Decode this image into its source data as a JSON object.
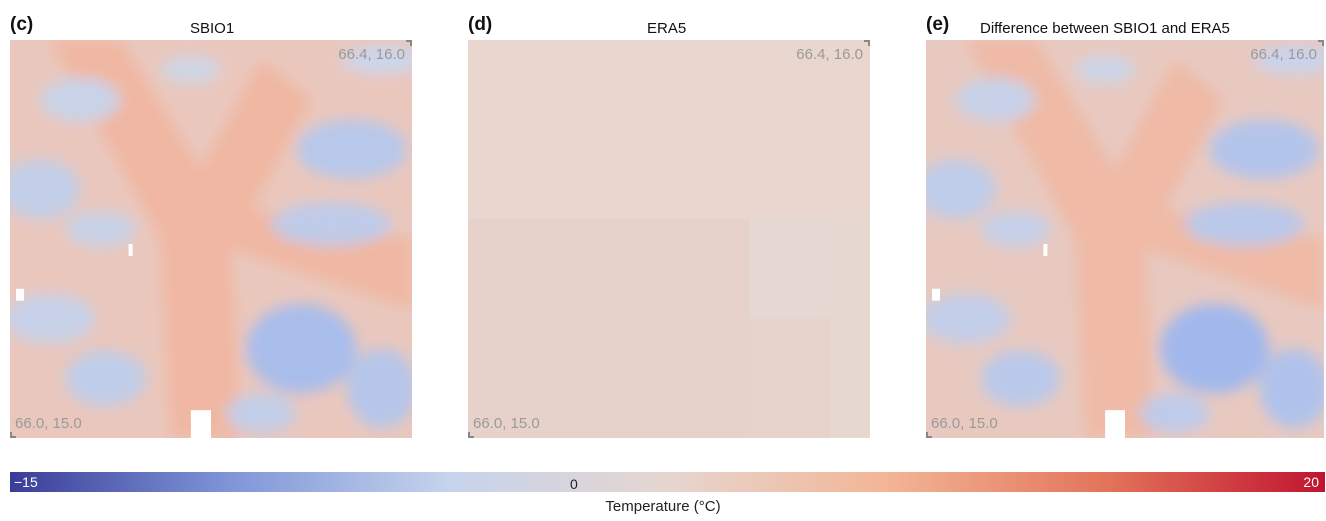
{
  "panels": [
    {
      "letter": "(c)",
      "title": "SBIO1",
      "ne_coord": "66.4, 16.0",
      "sw_coord": "66.0, 15.0"
    },
    {
      "letter": "(d)",
      "title": "ERA5",
      "ne_coord": "66.4, 16.0",
      "sw_coord": "66.0, 15.0"
    },
    {
      "letter": "(e)",
      "title": "Difference between SBIO1 and ERA5",
      "ne_coord": "66.4, 16.0",
      "sw_coord": "66.0, 15.0"
    }
  ],
  "colorbar": {
    "min_label": "−15",
    "mid_label": "0",
    "max_label": "20",
    "title": "Temperature (°C)",
    "colors": [
      "#3a3d98",
      "#7f95d8",
      "#c5d3ec",
      "#e6d6d0",
      "#f3b596",
      "#e3745a",
      "#c0142f"
    ]
  }
}
